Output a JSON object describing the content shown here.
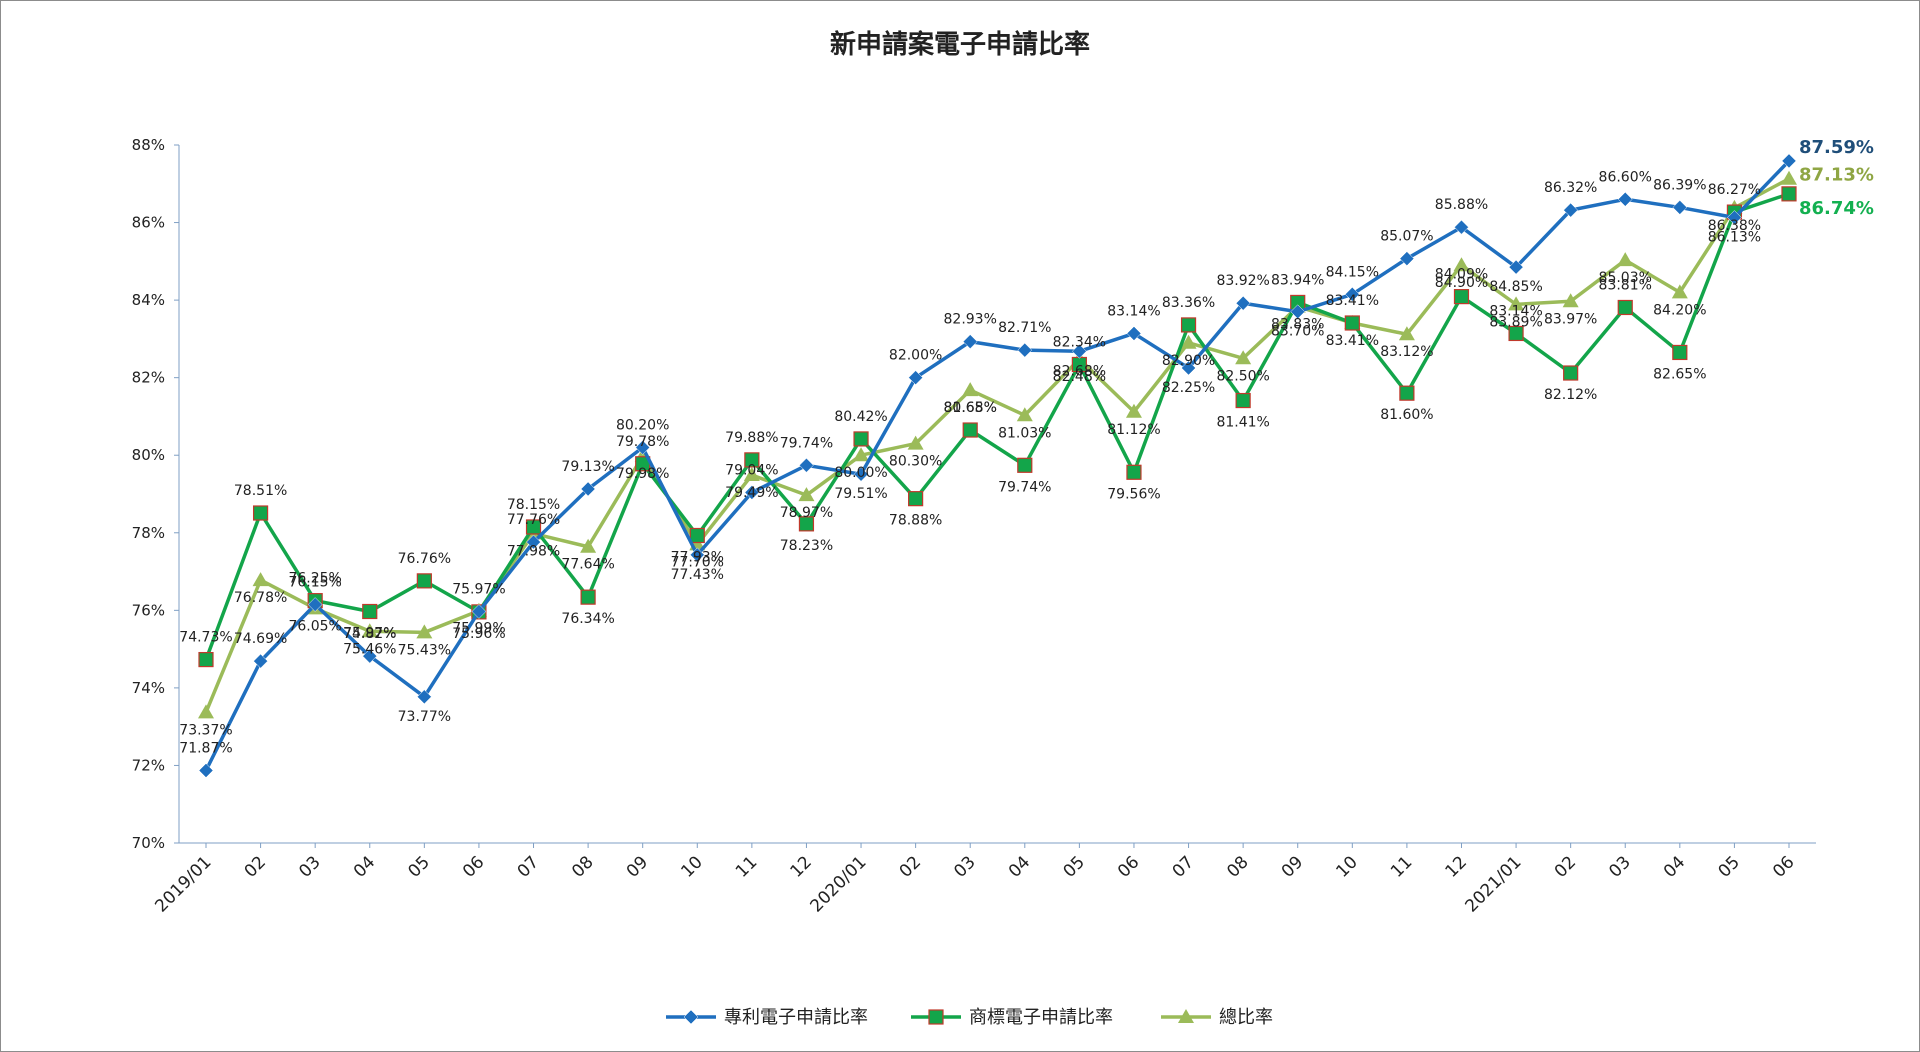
{
  "chart_data": {
    "type": "line",
    "title": "新申請案電子申請比率",
    "xlabel": "",
    "ylabel": "",
    "ylim": [
      70,
      88
    ],
    "yticks": [
      "70%",
      "72%",
      "74%",
      "76%",
      "78%",
      "80%",
      "82%",
      "84%",
      "86%",
      "88%"
    ],
    "categories": [
      "2019/01",
      "02",
      "03",
      "04",
      "05",
      "06",
      "07",
      "08",
      "09",
      "10",
      "11",
      "12",
      "2020/01",
      "02",
      "03",
      "04",
      "05",
      "06",
      "07",
      "08",
      "09",
      "10",
      "11",
      "12",
      "2021/01",
      "02",
      "03",
      "04",
      "05",
      "06"
    ],
    "legend_position": "bottom",
    "grid": false,
    "series": [
      {
        "name": "專利電子申請比率",
        "color": "#1f6fbf",
        "marker": "diamond",
        "values": [
          71.87,
          74.69,
          76.15,
          74.82,
          73.77,
          75.97,
          77.76,
          79.13,
          80.2,
          77.43,
          79.04,
          79.74,
          79.51,
          82.0,
          82.93,
          82.71,
          82.68,
          83.14,
          82.25,
          83.92,
          83.7,
          84.15,
          85.07,
          85.88,
          84.85,
          86.32,
          86.6,
          86.39,
          86.13,
          87.59
        ],
        "labels": [
          "71.87%",
          "74.69%",
          "76.15%",
          "74.82%",
          "73.77%",
          "75.97%",
          "77.76%",
          "79.13%",
          "80.20%",
          "77.43%",
          "79.04%",
          "79.74%",
          "79.51%",
          "82.00%",
          "82.93%",
          "82.71%",
          "82.68%",
          "83.14%",
          "82.25%",
          "83.92%",
          "83.70%",
          "84.15%",
          "85.07%",
          "85.88%",
          "84.85%",
          "86.32%",
          "86.60%",
          "86.39%",
          "86.13%",
          "87.59%"
        ],
        "end_color": "#1f4e79"
      },
      {
        "name": "商標電子申請比率",
        "color": "#13a54a",
        "marker": "square",
        "values": [
          74.73,
          78.51,
          76.25,
          75.97,
          76.76,
          75.96,
          78.15,
          76.34,
          79.78,
          77.93,
          79.88,
          78.23,
          80.42,
          78.88,
          80.65,
          79.74,
          82.34,
          79.56,
          83.36,
          81.41,
          83.94,
          83.41,
          81.6,
          84.09,
          83.14,
          82.12,
          83.81,
          82.65,
          86.27,
          86.74
        ],
        "labels": [
          "74.73%",
          "78.51%",
          "76.25%",
          "75.97%",
          "76.76%",
          "75.96%",
          "78.15%",
          "76.34%",
          "79.78%",
          "77.93%",
          "79.88%",
          "78.23%",
          "80.42%",
          "78.88%",
          "80.65%",
          "79.74%",
          "82.34%",
          "79.56%",
          "83.36%",
          "81.41%",
          "83.94%",
          "83.41%",
          "81.60%",
          "84.09%",
          "83.14%",
          "82.12%",
          "83.81%",
          "82.65%",
          "86.27%",
          "86.74%"
        ],
        "end_color": "#13b050"
      },
      {
        "name": "總比率",
        "color": "#9bbb59",
        "marker": "triangle",
        "values": [
          73.37,
          76.78,
          76.05,
          75.46,
          75.43,
          75.99,
          77.98,
          77.64,
          79.98,
          77.7,
          79.49,
          78.97,
          80.0,
          80.3,
          81.68,
          81.03,
          82.48,
          81.12,
          82.9,
          82.5,
          83.83,
          83.41,
          83.12,
          84.9,
          83.89,
          83.97,
          85.03,
          84.2,
          86.38,
          87.13
        ],
        "labels": [
          "73.37%",
          "76.78%",
          "76.05%",
          "75.46%",
          "75.43%",
          "75.99%",
          "77.98%",
          "77.64%",
          "79.98%",
          "77.70%",
          "79.49%",
          "78.97%",
          "80.00%",
          "80.30%",
          "81.68%",
          "81.03%",
          "82.48%",
          "81.12%",
          "82.90%",
          "82.50%",
          "83.83%",
          "83.41%",
          "83.12%",
          "84.90%",
          "83.89%",
          "83.97%",
          "85.03%",
          "84.20%",
          "86.38%",
          "87.13%"
        ],
        "end_color": "#8fa644"
      }
    ]
  }
}
